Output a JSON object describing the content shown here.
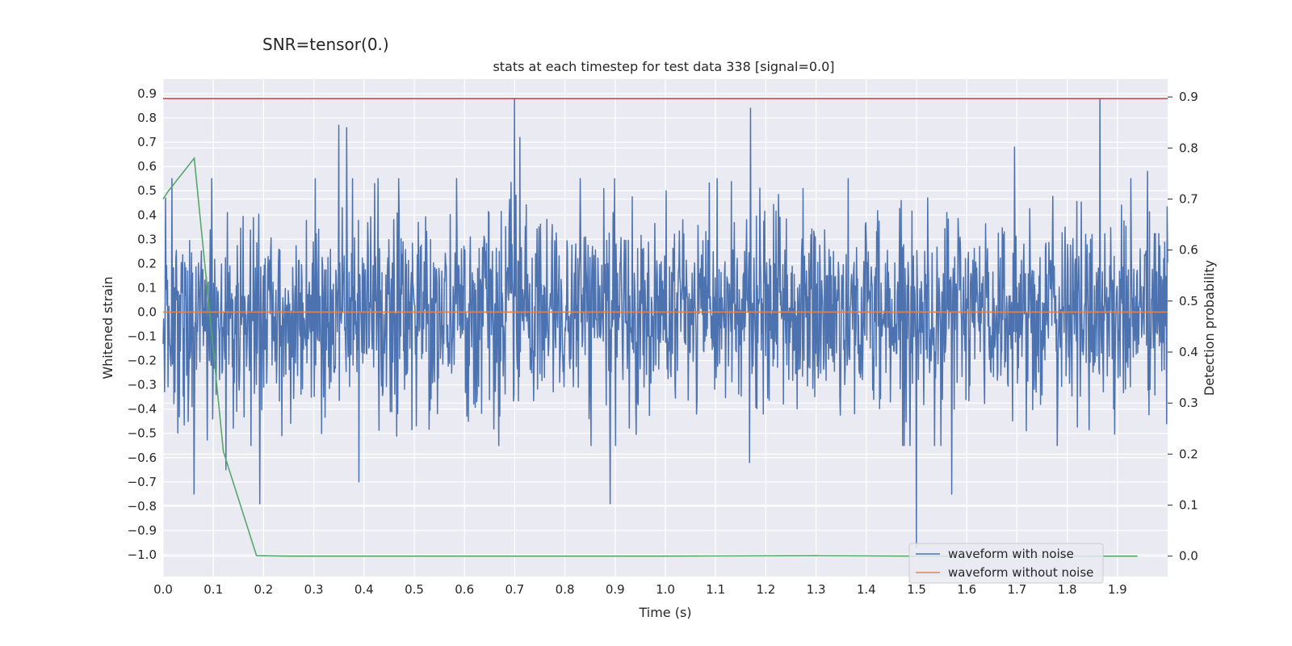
{
  "suptitle": "SNR=tensor(0.)",
  "chart_data": {
    "type": "line",
    "title": "stats at each timestep for test data 338 [signal=0.0]",
    "xlabel": "Time (s)",
    "ylabel": "Whitened strain",
    "ylabel_right": "Detection probability",
    "xlim": [
      0,
      2.0
    ],
    "ylim": [
      -1.09,
      0.96
    ],
    "ylim_right": [
      -0.04,
      0.935
    ],
    "x_ticks": [
      "0.0",
      "0.1",
      "0.2",
      "0.3",
      "0.4",
      "0.5",
      "0.6",
      "0.7",
      "0.8",
      "0.9",
      "1.0",
      "1.1",
      "1.2",
      "1.3",
      "1.4",
      "1.5",
      "1.6",
      "1.7",
      "1.8",
      "1.9"
    ],
    "y_ticks": [
      "0.9",
      "0.8",
      "0.7",
      "0.6",
      "0.5",
      "0.4",
      "0.3",
      "0.2",
      "0.1",
      "0.0",
      "−0.1",
      "−0.2",
      "−0.3",
      "−0.4",
      "−0.5",
      "−0.6",
      "−0.7",
      "−0.8",
      "−0.9",
      "−1.0"
    ],
    "y_ticks_right": [
      "0.9",
      "0.8",
      "0.7",
      "0.6",
      "0.5",
      "0.4",
      "0.3",
      "0.2",
      "0.1",
      "0.0"
    ],
    "grid": true,
    "legend": {
      "placement": "lower-right",
      "entries": [
        "waveform with noise",
        "waveform without noise"
      ]
    },
    "series": [
      {
        "name": "waveform with noise",
        "color": "#4c72b0",
        "axis": "left",
        "noise_std": 0.2,
        "noise_seed": 338,
        "samples": 2048,
        "peaks": [
          [
            0.005,
            0.47
          ],
          [
            0.018,
            0.55
          ],
          [
            0.062,
            -0.75
          ],
          [
            0.125,
            -0.65
          ],
          [
            0.192,
            -0.79
          ],
          [
            0.35,
            0.77
          ],
          [
            0.365,
            0.76
          ],
          [
            0.39,
            -0.7
          ],
          [
            0.7,
            0.88
          ],
          [
            0.71,
            0.72
          ],
          [
            0.89,
            -0.79
          ],
          [
            1.17,
            0.84
          ],
          [
            1.168,
            -0.62
          ],
          [
            1.5,
            -0.97
          ],
          [
            1.57,
            -0.75
          ],
          [
            1.695,
            0.68
          ],
          [
            1.865,
            0.88
          ],
          [
            1.96,
            0.58
          ]
        ]
      },
      {
        "name": "waveform without noise",
        "color": "#dd8452",
        "axis": "left",
        "x": [
          0.0,
          2.0
        ],
        "y": [
          0.0,
          0.0
        ]
      },
      {
        "color": "#55a868",
        "axis": "right",
        "x": [
          0.0,
          0.01,
          0.062,
          0.12,
          0.186,
          0.25,
          0.5,
          1.0,
          1.3,
          1.5,
          1.94
        ],
        "y": [
          0.7,
          0.715,
          0.78,
          0.205,
          0.001,
          0.0,
          0.0,
          0.0,
          0.001,
          0.0,
          0.0
        ]
      },
      {
        "color": "#c44e52",
        "axis": "left",
        "x": [
          0.0,
          2.0
        ],
        "y": [
          0.88,
          0.88
        ]
      }
    ]
  }
}
